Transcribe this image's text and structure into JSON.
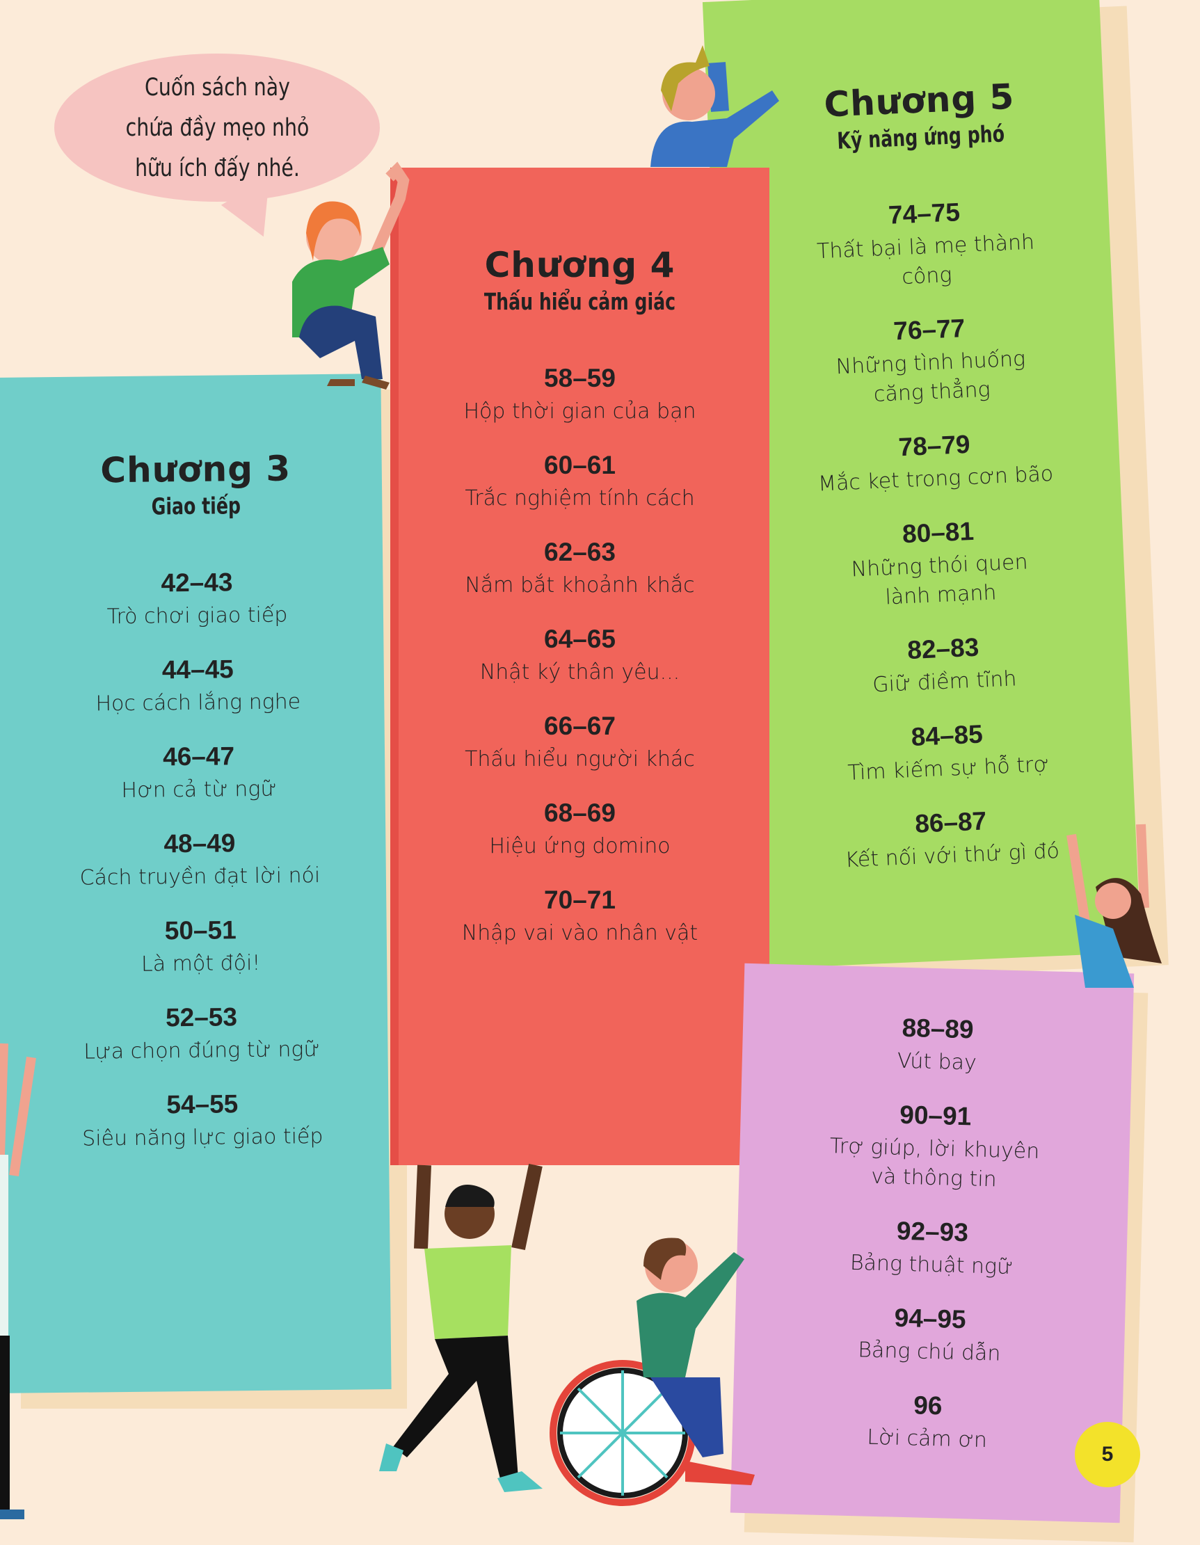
{
  "speech_bubble": {
    "lines": [
      "Cuốn sách này",
      "chứa đầy mẹo nhỏ",
      "hữu ích đấy nhé."
    ]
  },
  "chapters": [
    {
      "id": "cyan",
      "title": "Chương 3",
      "subtitle": "Giao tiếp",
      "color": "#70cec9",
      "entries": [
        {
          "pages": "42–43",
          "lines": [
            "Trò chơi giao tiếp"
          ]
        },
        {
          "pages": "44–45",
          "lines": [
            "Học cách lắng nghe"
          ]
        },
        {
          "pages": "46–47",
          "lines": [
            "Hơn cả từ ngữ"
          ]
        },
        {
          "pages": "48–49",
          "lines": [
            "Cách truyền đạt lời nói"
          ]
        },
        {
          "pages": "50–51",
          "lines": [
            "Là một đội!"
          ]
        },
        {
          "pages": "52–53",
          "lines": [
            "Lựa chọn đúng từ ngữ"
          ]
        },
        {
          "pages": "54–55",
          "lines": [
            "Siêu năng lực giao tiếp"
          ]
        }
      ]
    },
    {
      "id": "red",
      "title": "Chương 4",
      "subtitle": "Thấu hiểu cảm giác",
      "color": "#f1645a",
      "entries": [
        {
          "pages": "58–59",
          "lines": [
            "Hộp thời gian của bạn"
          ]
        },
        {
          "pages": "60–61",
          "lines": [
            "Trắc nghiệm tính cách"
          ]
        },
        {
          "pages": "62–63",
          "lines": [
            "Nắm bắt khoảnh khắc"
          ]
        },
        {
          "pages": "64–65",
          "lines": [
            "Nhật ký thân yêu..."
          ]
        },
        {
          "pages": "66–67",
          "lines": [
            "Thấu hiểu người khác"
          ]
        },
        {
          "pages": "68–69",
          "lines": [
            "Hiệu ứng domino"
          ]
        },
        {
          "pages": "70–71",
          "lines": [
            "Nhập vai vào nhân vật"
          ]
        }
      ]
    },
    {
      "id": "green",
      "title": "Chương 5",
      "subtitle": "Kỹ năng ứng phó",
      "color": "#a6dc63",
      "entries": [
        {
          "pages": "74–75",
          "lines": [
            "Thất bại là mẹ thành",
            "công"
          ]
        },
        {
          "pages": "76–77",
          "lines": [
            "Những tình huống",
            "căng thẳng"
          ]
        },
        {
          "pages": "78–79",
          "lines": [
            "Mắc kẹt trong cơn bão"
          ]
        },
        {
          "pages": "80–81",
          "lines": [
            "Những thói quen",
            "lành mạnh"
          ]
        },
        {
          "pages": "82–83",
          "lines": [
            "Giữ điềm tĩnh"
          ]
        },
        {
          "pages": "84–85",
          "lines": [
            "Tìm kiếm sự hỗ trợ"
          ]
        },
        {
          "pages": "86–87",
          "lines": [
            "Kết nối với thứ gì đó"
          ]
        }
      ]
    },
    {
      "id": "pink",
      "title": "",
      "subtitle": "",
      "color": "#e1a7db",
      "entries": [
        {
          "pages": "88–89",
          "lines": [
            "Vút bay"
          ]
        },
        {
          "pages": "90–91",
          "lines": [
            "Trợ giúp, lời khuyên",
            "và thông tin"
          ]
        },
        {
          "pages": "92–93",
          "lines": [
            "Bảng thuật ngữ"
          ]
        },
        {
          "pages": "94–95",
          "lines": [
            "Bảng chú dẫn"
          ]
        },
        {
          "pages": "96",
          "lines": [
            "Lời cảm ơn"
          ]
        }
      ]
    }
  ],
  "page_number": "5"
}
